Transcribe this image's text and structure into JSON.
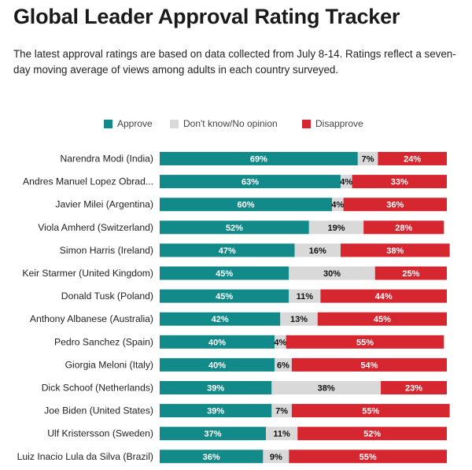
{
  "header": {
    "title": "Global Leader Approval Rating Tracker",
    "subtitle": "The latest approval ratings are based on data collected from July 8-14. Ratings reflect a seven-day moving average of views among adults in each country surveyed."
  },
  "colors": {
    "approve": "#138a8a",
    "dont_know": "#d9d9d9",
    "disapprove": "#d6262f"
  },
  "chart_data": {
    "type": "bar",
    "orientation": "horizontal",
    "stacked": true,
    "title": "Global Leader Approval Rating Tracker",
    "legend_position": "top",
    "categories": [
      "Narendra Modi (India)",
      "Andres Manuel Lopez Obrad...",
      "Javier Milei (Argentina)",
      "Viola Amherd (Switzerland)",
      "Simon Harris (Ireland)",
      "Keir Starmer (United Kingdom)",
      "Donald Tusk (Poland)",
      "Anthony Albanese (Australia)",
      "Pedro Sanchez (Spain)",
      "Giorgia Meloni (Italy)",
      "Dick Schoof (Netherlands)",
      "Joe Biden (United States)",
      "Ulf Kristersson (Sweden)",
      "Luiz Inacio Lula da Silva (Brazil)"
    ],
    "series": [
      {
        "name": "Approve",
        "values": [
          69,
          63,
          60,
          52,
          47,
          45,
          45,
          42,
          40,
          40,
          39,
          39,
          37,
          36
        ]
      },
      {
        "name": "Don't know/No opinion",
        "values": [
          7,
          4,
          4,
          19,
          16,
          30,
          11,
          13,
          4,
          6,
          38,
          7,
          11,
          9
        ]
      },
      {
        "name": "Disapprove",
        "values": [
          24,
          33,
          36,
          28,
          38,
          25,
          44,
          45,
          55,
          54,
          23,
          55,
          52,
          55
        ]
      }
    ],
    "value_suffix": "%",
    "xlim": [
      0,
      100
    ]
  }
}
